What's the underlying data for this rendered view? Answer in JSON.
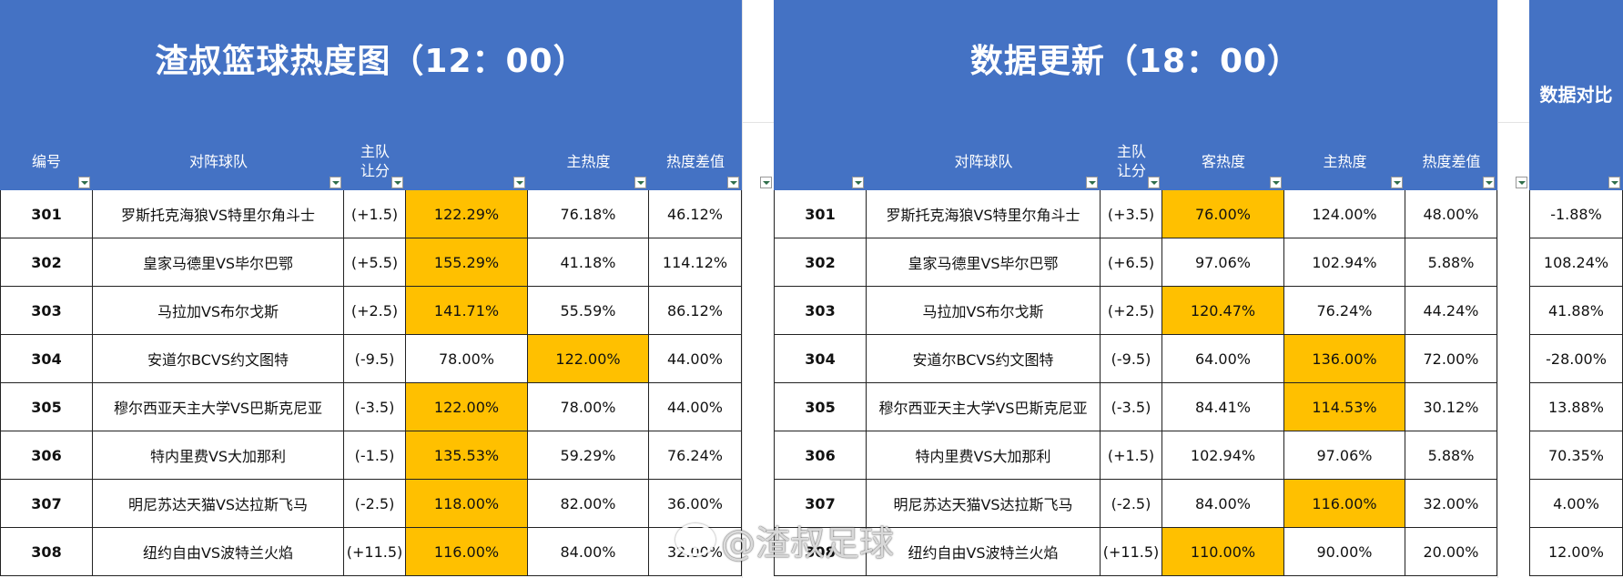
{
  "colors": {
    "header_bg": "#4472c4",
    "highlight": "#ffc000",
    "border": "#222222"
  },
  "left_sheet": {
    "title": "渣叔篮球热度图（12：00）",
    "headers": {
      "id": "编号",
      "match": "对阵球队",
      "handicap": "主队\n让分",
      "away_heat": "",
      "home_heat": "主热度",
      "diff": "热度差值"
    },
    "rows": [
      {
        "id": "301",
        "match": "罗斯托克海狼VS特里尔角斗士",
        "handicap": "(+1.5)",
        "away_heat": "122.29%",
        "home_heat": "76.18%",
        "diff": "46.12%",
        "hl": "away"
      },
      {
        "id": "302",
        "match": "皇家马德里VS毕尔巴鄂",
        "handicap": "(+5.5)",
        "away_heat": "155.29%",
        "home_heat": "41.18%",
        "diff": "114.12%",
        "hl": "away"
      },
      {
        "id": "303",
        "match": "马拉加VS布尔戈斯",
        "handicap": "(+2.5)",
        "away_heat": "141.71%",
        "home_heat": "55.59%",
        "diff": "86.12%",
        "hl": "away"
      },
      {
        "id": "304",
        "match": "安道尔BCVS约文图特",
        "handicap": "(-9.5)",
        "away_heat": "78.00%",
        "home_heat": "122.00%",
        "diff": "44.00%",
        "hl": "home"
      },
      {
        "id": "305",
        "match": "穆尔西亚天主大学VS巴斯克尼亚",
        "handicap": "(-3.5)",
        "away_heat": "122.00%",
        "home_heat": "78.00%",
        "diff": "44.00%",
        "hl": "away"
      },
      {
        "id": "306",
        "match": "特内里费VS大加那利",
        "handicap": "(-1.5)",
        "away_heat": "135.53%",
        "home_heat": "59.29%",
        "diff": "76.24%",
        "hl": "away"
      },
      {
        "id": "307",
        "match": "明尼苏达天猫VS达拉斯飞马",
        "handicap": "(-2.5)",
        "away_heat": "118.00%",
        "home_heat": "82.00%",
        "diff": "36.00%",
        "hl": "away"
      },
      {
        "id": "308",
        "match": "纽约自由VS波特兰火焰",
        "handicap": "(+11.5)",
        "away_heat": "116.00%",
        "home_heat": "84.00%",
        "diff": "32.00%",
        "hl": "away"
      }
    ]
  },
  "right_sheet": {
    "title": "数据更新（18：00）",
    "headers": {
      "match": "对阵球队",
      "handicap": "主队\n让分",
      "away_heat": "客热度",
      "home_heat": "主热度",
      "diff": "热度差值"
    },
    "rows": [
      {
        "id": "301",
        "match": "罗斯托克海狼VS特里尔角斗士",
        "handicap": "(+3.5)",
        "away_heat": "76.00%",
        "home_heat": "124.00%",
        "diff": "48.00%",
        "hl": "away"
      },
      {
        "id": "302",
        "match": "皇家马德里VS毕尔巴鄂",
        "handicap": "(+6.5)",
        "away_heat": "97.06%",
        "home_heat": "102.94%",
        "diff": "5.88%",
        "hl": ""
      },
      {
        "id": "303",
        "match": "马拉加VS布尔戈斯",
        "handicap": "(+2.5)",
        "away_heat": "120.47%",
        "home_heat": "76.24%",
        "diff": "44.24%",
        "hl": "away"
      },
      {
        "id": "304",
        "match": "安道尔BCVS约文图特",
        "handicap": "(-9.5)",
        "away_heat": "64.00%",
        "home_heat": "136.00%",
        "diff": "72.00%",
        "hl": "home"
      },
      {
        "id": "305",
        "match": "穆尔西亚天主大学VS巴斯克尼亚",
        "handicap": "(-3.5)",
        "away_heat": "84.41%",
        "home_heat": "114.53%",
        "diff": "30.12%",
        "hl": "home"
      },
      {
        "id": "306",
        "match": "特内里费VS大加那利",
        "handicap": "(+1.5)",
        "away_heat": "102.94%",
        "home_heat": "97.06%",
        "diff": "5.88%",
        "hl": ""
      },
      {
        "id": "307",
        "match": "明尼苏达天猫VS达拉斯飞马",
        "handicap": "(-2.5)",
        "away_heat": "84.00%",
        "home_heat": "116.00%",
        "diff": "32.00%",
        "hl": "home"
      },
      {
        "id": "308",
        "match": "纽约自由VS波特兰火焰",
        "handicap": "(+11.5)",
        "away_heat": "110.00%",
        "home_heat": "90.00%",
        "diff": "20.00%",
        "hl": "away"
      }
    ]
  },
  "compare_sheet": {
    "title": "数据对比",
    "rows": [
      "-1.88%",
      "108.24%",
      "41.88%",
      "-28.00%",
      "13.88%",
      "70.35%",
      "4.00%",
      "12.00%"
    ]
  },
  "watermark": {
    "text": "@渣叔足球",
    "icon": "weibo-icon"
  }
}
